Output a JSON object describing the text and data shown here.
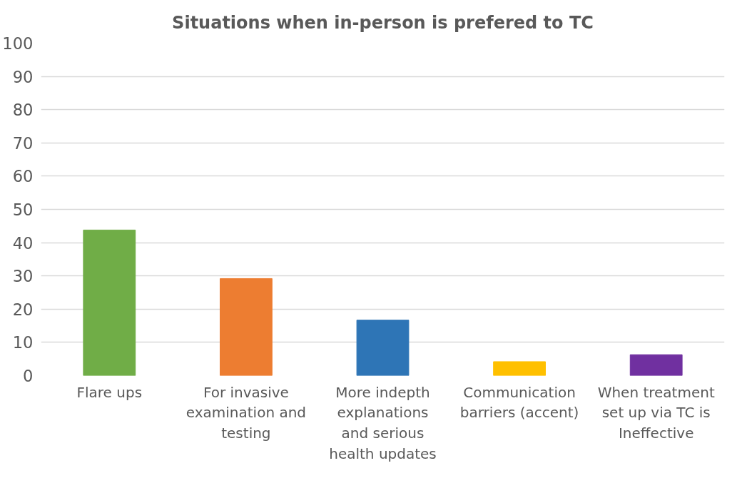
{
  "chart_data": {
    "type": "bar",
    "title": "Situations when in-person is prefered to TC",
    "categories": [
      "Flare ups",
      "For invasive\nexamination and\ntesting",
      "More indepth\nexplanations\nand serious\nhealth updates",
      "Communication\nbarriers (accent)",
      "When treatment\nset up via TC is\nIneffective"
    ],
    "values": [
      43.8,
      29.2,
      16.7,
      4.2,
      6.3
    ],
    "colors": [
      "#70ad47",
      "#ed7d31",
      "#2e75b6",
      "#ffc000",
      "#7030a0"
    ],
    "ylim": [
      0,
      100
    ],
    "yticks": [
      0,
      10,
      20,
      30,
      40,
      50,
      60,
      70,
      80,
      90,
      100
    ],
    "grid": "y"
  }
}
